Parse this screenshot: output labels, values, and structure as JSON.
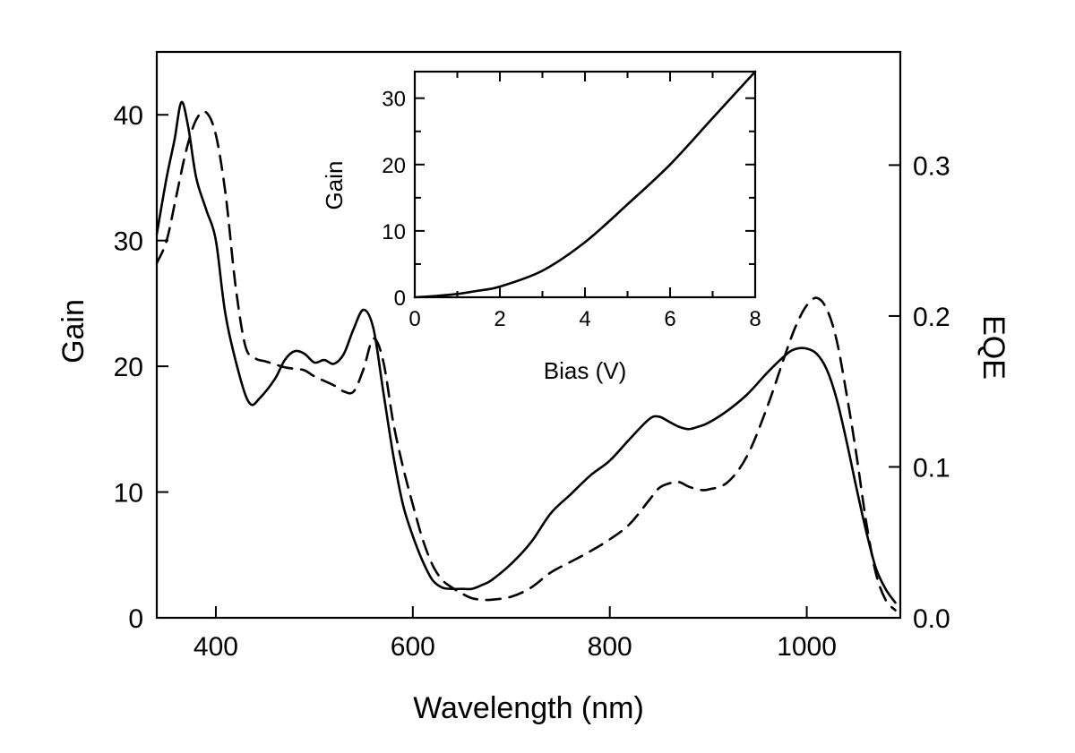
{
  "chart_data": [
    {
      "type": "line",
      "title": "",
      "xlabel": "Wavelength (nm)",
      "ylabel": "Gain",
      "y2label": "EQE",
      "xlim": [
        340,
        1095
      ],
      "ylim": [
        0,
        45
      ],
      "y2lim": [
        0,
        0.375
      ],
      "grid": false,
      "x_ticks": [
        400,
        600,
        800,
        1000
      ],
      "y_ticks": [
        0,
        10,
        20,
        30,
        40
      ],
      "y2_ticks": [
        0.0,
        0.1,
        0.2,
        0.3
      ],
      "y2_tick_labels": [
        "0.0",
        "0.1",
        "0.2",
        "0.3"
      ],
      "series": [
        {
          "axis": "left",
          "style": "solid",
          "x": [
            340,
            350,
            358,
            365,
            372,
            380,
            390,
            400,
            410,
            425,
            435,
            445,
            460,
            470,
            480,
            490,
            500,
            510,
            520,
            530,
            540,
            550,
            560,
            570,
            580,
            590,
            600,
            610,
            620,
            630,
            640,
            650,
            660,
            670,
            680,
            700,
            720,
            740,
            760,
            780,
            800,
            820,
            840,
            850,
            860,
            870,
            880,
            890,
            900,
            920,
            940,
            960,
            980,
            990,
            1000,
            1010,
            1020,
            1030,
            1040,
            1050,
            1060,
            1070,
            1080,
            1090
          ],
          "y": [
            30.5,
            35,
            38,
            41,
            39,
            35,
            32.5,
            30,
            24,
            19,
            17,
            17.5,
            19,
            20.5,
            21.2,
            21,
            20.3,
            20.5,
            20.2,
            21,
            23,
            24.5,
            23,
            18,
            13,
            9,
            6.5,
            4.5,
            3,
            2.4,
            2.3,
            2.3,
            2.3,
            2.6,
            3,
            4.3,
            6,
            8.3,
            9.8,
            11.3,
            12.5,
            14.2,
            15.8,
            16,
            15.6,
            15.2,
            15,
            15.2,
            15.5,
            16.5,
            17.8,
            19.5,
            21,
            21.4,
            21.4,
            21,
            19.8,
            17.5,
            14.2,
            10.5,
            7,
            4,
            2.3,
            1.2
          ]
        },
        {
          "axis": "right",
          "style": "dashed",
          "x": [
            340,
            350,
            360,
            370,
            380,
            390,
            400,
            410,
            420,
            430,
            440,
            450,
            460,
            470,
            480,
            490,
            500,
            510,
            520,
            530,
            540,
            550,
            560,
            570,
            580,
            590,
            600,
            610,
            620,
            630,
            640,
            650,
            660,
            670,
            680,
            700,
            720,
            740,
            760,
            780,
            800,
            820,
            840,
            850,
            860,
            870,
            880,
            890,
            900,
            920,
            940,
            960,
            980,
            990,
            1000,
            1010,
            1020,
            1030,
            1040,
            1050,
            1060,
            1070,
            1080,
            1090
          ],
          "y": [
            0.235,
            0.25,
            0.28,
            0.31,
            0.33,
            0.335,
            0.32,
            0.28,
            0.22,
            0.18,
            0.172,
            0.17,
            0.168,
            0.166,
            0.165,
            0.164,
            0.16,
            0.157,
            0.154,
            0.15,
            0.15,
            0.165,
            0.185,
            0.17,
            0.13,
            0.1,
            0.075,
            0.052,
            0.035,
            0.025,
            0.02,
            0.016,
            0.013,
            0.012,
            0.012,
            0.014,
            0.02,
            0.03,
            0.037,
            0.044,
            0.052,
            0.062,
            0.078,
            0.086,
            0.089,
            0.09,
            0.087,
            0.085,
            0.085,
            0.09,
            0.108,
            0.14,
            0.178,
            0.195,
            0.207,
            0.212,
            0.205,
            0.185,
            0.15,
            0.11,
            0.065,
            0.03,
            0.012,
            0.005
          ]
        }
      ]
    },
    {
      "type": "line",
      "title": "",
      "xlabel": "Bias (V)",
      "ylabel": "Gain",
      "xlim": [
        0,
        8
      ],
      "ylim": [
        0,
        34
      ],
      "grid": false,
      "x_ticks": [
        0,
        2,
        4,
        6,
        8
      ],
      "y_ticks": [
        0,
        10,
        20,
        30
      ],
      "series": [
        {
          "style": "solid",
          "x": [
            0,
            0.5,
            1,
            1.5,
            2,
            3,
            4,
            5,
            6,
            7,
            8
          ],
          "y": [
            0,
            0.2,
            0.5,
            1,
            1.6,
            4,
            8.3,
            14,
            20,
            27,
            34
          ]
        }
      ]
    }
  ]
}
